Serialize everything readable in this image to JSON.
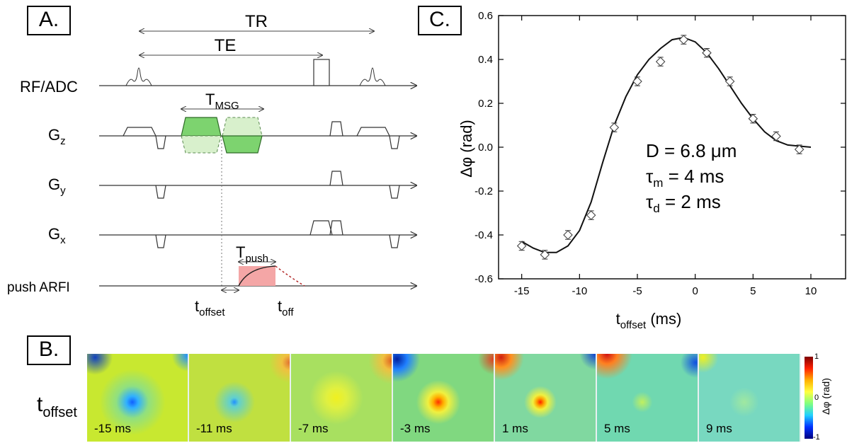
{
  "panelA": {
    "label": "A.",
    "tr_label": "TR",
    "te_label": "TE",
    "rows": {
      "rf": "RF/ADC",
      "gz_main": "G",
      "gz_sub": "z",
      "gy_main": "G",
      "gy_sub": "y",
      "gx_main": "G",
      "gx_sub": "x",
      "push": "push ARFI"
    },
    "tmsg_main": "T",
    "tmsg_sub": "MSG",
    "tpush_main": "T",
    "tpush_sub": "push",
    "toffset_main": "t",
    "toffset_sub": "offset",
    "toff_main": "t",
    "toff_sub": "off",
    "colors": {
      "gradient_green": "#7dd36f",
      "gradient_green_light": "#d8f0cc",
      "push_pink": "#f4a6a6",
      "decay_red": "#b02020"
    }
  },
  "panelB": {
    "label": "B.",
    "row_main": "t",
    "row_sub": "offset",
    "tiles": [
      {
        "label": "-15 ms"
      },
      {
        "label": "-11 ms"
      },
      {
        "label": "-7 ms"
      },
      {
        "label": "-3 ms"
      },
      {
        "label": "1 ms"
      },
      {
        "label": "5 ms"
      },
      {
        "label": "9 ms"
      }
    ],
    "colorbar": {
      "max": "1",
      "mid": "0",
      "min": "-1",
      "label": "Δφ (rad)"
    },
    "colormap": "jet"
  },
  "panelC": {
    "label": "C.",
    "annotation": {
      "d_text": "D = 6.8 μm",
      "tm_main": "τ",
      "tm_sub": "m",
      "tm_rest": " = 4 ms",
      "td_main": "τ",
      "td_sub": "d",
      "td_rest": " = 2 ms"
    }
  },
  "chart_data": {
    "type": "scatter",
    "xlabel_main": "t",
    "xlabel_sub": "offset",
    "xlabel_rest": " (ms)",
    "ylabel": "Δφ (rad)",
    "xlim": [
      -17,
      13
    ],
    "ylim": [
      -0.6,
      0.6
    ],
    "xticks": [
      "-15",
      "-10",
      "-5",
      "0",
      "5",
      "10"
    ],
    "xtick_values": [
      -15,
      -10,
      -5,
      0,
      5,
      10
    ],
    "yticks": [
      "0.6",
      "0.4",
      "0.2",
      "0.0",
      "-0.2",
      "-0.4",
      "-0.6"
    ],
    "ytick_values": [
      0.6,
      0.4,
      0.2,
      0.0,
      -0.2,
      -0.4,
      -0.6
    ],
    "series": [
      {
        "kind": "points",
        "x": [
          -15,
          -13,
          -11,
          -9,
          -7,
          -5,
          -3,
          -1,
          1,
          3,
          5,
          7,
          9
        ],
        "y": [
          -0.45,
          -0.49,
          -0.4,
          -0.31,
          0.09,
          0.3,
          0.39,
          0.49,
          0.43,
          0.3,
          0.13,
          0.05,
          -0.01
        ],
        "err": [
          0.02,
          0.02,
          0.02,
          0.02,
          0.02,
          0.02,
          0.02,
          0.02,
          0.02,
          0.02,
          0.02,
          0.02,
          0.02
        ]
      },
      {
        "kind": "line",
        "x": [
          -15,
          -14,
          -13,
          -12,
          -11,
          -10,
          -9,
          -8,
          -7,
          -6,
          -5,
          -4,
          -3,
          -2,
          -1,
          0,
          1,
          2,
          3,
          4,
          5,
          6,
          7,
          8,
          9,
          10
        ],
        "y": [
          -0.43,
          -0.46,
          -0.48,
          -0.48,
          -0.45,
          -0.38,
          -0.25,
          -0.07,
          0.1,
          0.23,
          0.33,
          0.4,
          0.45,
          0.49,
          0.5,
          0.48,
          0.43,
          0.36,
          0.28,
          0.2,
          0.13,
          0.07,
          0.03,
          0.01,
          0.005,
          0.0
        ]
      }
    ]
  }
}
